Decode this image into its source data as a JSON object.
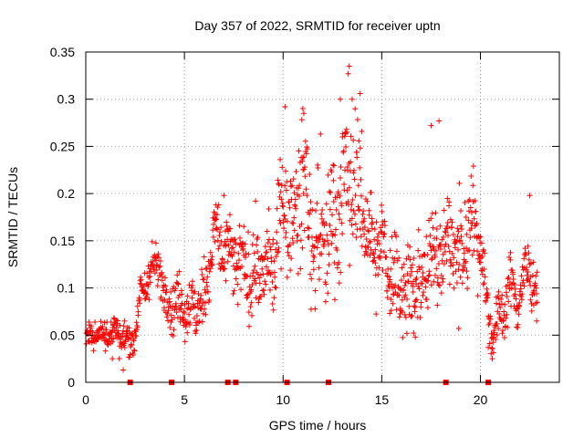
{
  "chart_data": {
    "type": "scatter",
    "title": "Day 357 of 2022, SRMTID for receiver uptn",
    "xlabel": "GPS time / hours",
    "ylabel": "SRMTID / TECUs",
    "xlim": [
      0,
      24
    ],
    "ylim": [
      0,
      0.35
    ],
    "xticks": [
      0,
      5,
      10,
      15,
      20
    ],
    "xtick_labels": [
      "0",
      "5",
      "10",
      "15",
      "20"
    ],
    "yticks": [
      0,
      0.05,
      0.1,
      0.15,
      0.2,
      0.25,
      0.3,
      0.35
    ],
    "ytick_labels": [
      "0",
      "0.05",
      "0.1",
      "0.15",
      "0.2",
      "0.25",
      "0.3",
      "0.35"
    ],
    "grid": true,
    "marker": "+",
    "color": "#ff0000",
    "gap_markers_x": [
      2.25,
      4.35,
      7.2,
      7.6,
      10.2,
      12.3,
      18.25,
      20.4
    ],
    "trend": [
      [
        0.0,
        0.045
      ],
      [
        0.5,
        0.055
      ],
      [
        1.0,
        0.048
      ],
      [
        1.5,
        0.055
      ],
      [
        2.0,
        0.045
      ],
      [
        2.4,
        0.045
      ],
      [
        2.8,
        0.09
      ],
      [
        3.2,
        0.115
      ],
      [
        3.7,
        0.125
      ],
      [
        4.0,
        0.09
      ],
      [
        4.5,
        0.085
      ],
      [
        5.0,
        0.08
      ],
      [
        5.5,
        0.075
      ],
      [
        6.0,
        0.09
      ],
      [
        6.5,
        0.16
      ],
      [
        7.0,
        0.14
      ],
      [
        7.5,
        0.13
      ],
      [
        8.0,
        0.12
      ],
      [
        8.5,
        0.115
      ],
      [
        9.0,
        0.12
      ],
      [
        9.5,
        0.12
      ],
      [
        10.0,
        0.2
      ],
      [
        10.5,
        0.16
      ],
      [
        11.0,
        0.22
      ],
      [
        11.5,
        0.15
      ],
      [
        12.0,
        0.15
      ],
      [
        12.5,
        0.17
      ],
      [
        13.0,
        0.2
      ],
      [
        13.5,
        0.22
      ],
      [
        14.0,
        0.19
      ],
      [
        14.5,
        0.14
      ],
      [
        15.0,
        0.14
      ],
      [
        15.5,
        0.12
      ],
      [
        16.0,
        0.1
      ],
      [
        16.5,
        0.1
      ],
      [
        17.0,
        0.1
      ],
      [
        17.5,
        0.14
      ],
      [
        18.0,
        0.14
      ],
      [
        18.5,
        0.15
      ],
      [
        19.0,
        0.13
      ],
      [
        19.5,
        0.18
      ],
      [
        20.0,
        0.15
      ],
      [
        20.3,
        0.09
      ],
      [
        20.6,
        0.05
      ],
      [
        21.0,
        0.07
      ],
      [
        21.5,
        0.1
      ],
      [
        22.0,
        0.09
      ],
      [
        22.5,
        0.13
      ],
      [
        22.9,
        0.08
      ]
    ],
    "spread": [
      [
        0.0,
        0.012
      ],
      [
        2.0,
        0.015
      ],
      [
        3.0,
        0.02
      ],
      [
        5.0,
        0.025
      ],
      [
        7.0,
        0.035
      ],
      [
        9.5,
        0.04
      ],
      [
        11.0,
        0.06
      ],
      [
        13.5,
        0.065
      ],
      [
        15.0,
        0.04
      ],
      [
        17.5,
        0.045
      ],
      [
        19.5,
        0.045
      ],
      [
        20.5,
        0.02
      ],
      [
        22.0,
        0.03
      ],
      [
        23.0,
        0.025
      ]
    ],
    "points_per_hour": 60,
    "notable_points": [
      [
        13.35,
        0.335
      ],
      [
        13.3,
        0.327
      ],
      [
        13.9,
        0.306
      ],
      [
        13.5,
        0.3
      ],
      [
        12.9,
        0.3
      ],
      [
        10.1,
        0.292
      ],
      [
        11.0,
        0.29
      ],
      [
        11.05,
        0.285
      ],
      [
        17.9,
        0.277
      ],
      [
        17.5,
        0.272
      ],
      [
        20.4,
        0.037
      ],
      [
        20.6,
        0.025
      ],
      [
        1.9,
        0.013
      ],
      [
        1.35,
        0.025
      ],
      [
        18.9,
        0.057
      ],
      [
        16.7,
        0.048
      ],
      [
        7.0,
        0.198
      ],
      [
        6.6,
        0.188
      ],
      [
        22.5,
        0.198
      ],
      [
        22.85,
        0.065
      ]
    ]
  }
}
